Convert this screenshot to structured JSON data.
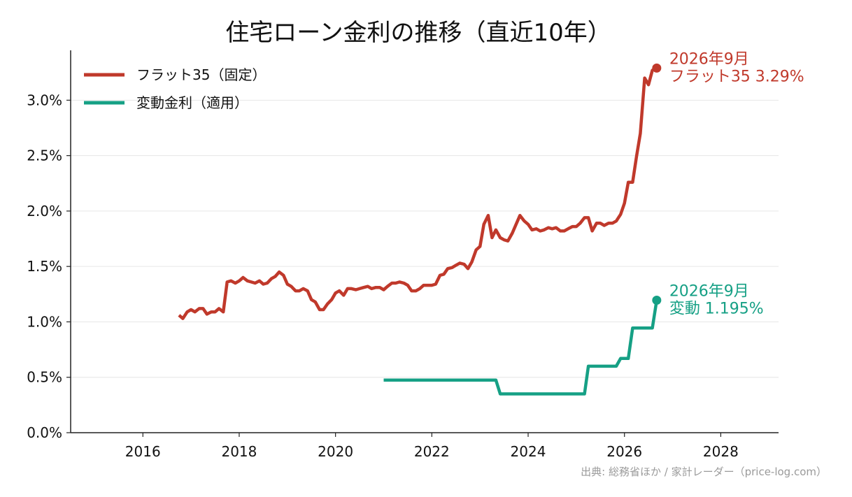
{
  "chart_data": {
    "type": "line",
    "title": "住宅ローン金利の推移（直近10年）",
    "xlabel": "",
    "ylabel": "",
    "xlim": [
      2014.5,
      2029.2
    ],
    "ylim": [
      0.0,
      3.45
    ],
    "x_ticks": [
      2016,
      2018,
      2020,
      2022,
      2024,
      2026,
      2028
    ],
    "x_tick_labels": [
      "2016",
      "2018",
      "2020",
      "2022",
      "2024",
      "2026",
      "2028"
    ],
    "y_ticks": [
      0.0,
      0.5,
      1.0,
      1.5,
      2.0,
      2.5,
      3.0
    ],
    "y_tick_labels": [
      "0.0%",
      "0.5%",
      "1.0%",
      "1.5%",
      "2.0%",
      "2.5%",
      "3.0%"
    ],
    "grid": "horizontal",
    "legend_position": "top-left",
    "series": [
      {
        "name": "フラット35（固定）",
        "color": "#c0392b",
        "points": [
          [
            2016.75,
            1.06
          ],
          [
            2016.83,
            1.03
          ],
          [
            2016.92,
            1.09
          ],
          [
            2017.0,
            1.11
          ],
          [
            2017.08,
            1.09
          ],
          [
            2017.17,
            1.12
          ],
          [
            2017.25,
            1.12
          ],
          [
            2017.33,
            1.07
          ],
          [
            2017.42,
            1.09
          ],
          [
            2017.5,
            1.09
          ],
          [
            2017.58,
            1.12
          ],
          [
            2017.67,
            1.09
          ],
          [
            2017.75,
            1.36
          ],
          [
            2017.83,
            1.37
          ],
          [
            2017.92,
            1.35
          ],
          [
            2018.0,
            1.37
          ],
          [
            2018.08,
            1.4
          ],
          [
            2018.17,
            1.37
          ],
          [
            2018.25,
            1.36
          ],
          [
            2018.33,
            1.35
          ],
          [
            2018.42,
            1.37
          ],
          [
            2018.5,
            1.34
          ],
          [
            2018.58,
            1.35
          ],
          [
            2018.67,
            1.39
          ],
          [
            2018.75,
            1.41
          ],
          [
            2018.83,
            1.45
          ],
          [
            2018.92,
            1.42
          ],
          [
            2019.0,
            1.34
          ],
          [
            2019.08,
            1.32
          ],
          [
            2019.17,
            1.28
          ],
          [
            2019.25,
            1.28
          ],
          [
            2019.33,
            1.3
          ],
          [
            2019.42,
            1.28
          ],
          [
            2019.5,
            1.2
          ],
          [
            2019.58,
            1.18
          ],
          [
            2019.67,
            1.11
          ],
          [
            2019.75,
            1.11
          ],
          [
            2019.83,
            1.16
          ],
          [
            2019.92,
            1.2
          ],
          [
            2020.0,
            1.26
          ],
          [
            2020.08,
            1.28
          ],
          [
            2020.17,
            1.24
          ],
          [
            2020.25,
            1.3
          ],
          [
            2020.33,
            1.3
          ],
          [
            2020.42,
            1.29
          ],
          [
            2020.5,
            1.3
          ],
          [
            2020.58,
            1.31
          ],
          [
            2020.67,
            1.32
          ],
          [
            2020.75,
            1.3
          ],
          [
            2020.83,
            1.31
          ],
          [
            2020.92,
            1.31
          ],
          [
            2021.0,
            1.29
          ],
          [
            2021.08,
            1.32
          ],
          [
            2021.17,
            1.35
          ],
          [
            2021.25,
            1.35
          ],
          [
            2021.33,
            1.36
          ],
          [
            2021.42,
            1.35
          ],
          [
            2021.5,
            1.33
          ],
          [
            2021.58,
            1.28
          ],
          [
            2021.67,
            1.28
          ],
          [
            2021.75,
            1.3
          ],
          [
            2021.83,
            1.33
          ],
          [
            2021.92,
            1.33
          ],
          [
            2022.0,
            1.33
          ],
          [
            2022.08,
            1.34
          ],
          [
            2022.17,
            1.42
          ],
          [
            2022.25,
            1.43
          ],
          [
            2022.33,
            1.48
          ],
          [
            2022.42,
            1.49
          ],
          [
            2022.5,
            1.51
          ],
          [
            2022.58,
            1.53
          ],
          [
            2022.67,
            1.52
          ],
          [
            2022.75,
            1.48
          ],
          [
            2022.83,
            1.54
          ],
          [
            2022.92,
            1.65
          ],
          [
            2023.0,
            1.68
          ],
          [
            2023.08,
            1.88
          ],
          [
            2023.17,
            1.96
          ],
          [
            2023.25,
            1.76
          ],
          [
            2023.33,
            1.83
          ],
          [
            2023.42,
            1.76
          ],
          [
            2023.5,
            1.74
          ],
          [
            2023.58,
            1.73
          ],
          [
            2023.67,
            1.8
          ],
          [
            2023.75,
            1.88
          ],
          [
            2023.83,
            1.96
          ],
          [
            2023.92,
            1.91
          ],
          [
            2024.0,
            1.88
          ],
          [
            2024.08,
            1.83
          ],
          [
            2024.17,
            1.84
          ],
          [
            2024.25,
            1.82
          ],
          [
            2024.33,
            1.83
          ],
          [
            2024.42,
            1.85
          ],
          [
            2024.5,
            1.84
          ],
          [
            2024.58,
            1.85
          ],
          [
            2024.67,
            1.82
          ],
          [
            2024.75,
            1.82
          ],
          [
            2024.83,
            1.84
          ],
          [
            2024.92,
            1.86
          ],
          [
            2025.0,
            1.86
          ],
          [
            2025.08,
            1.89
          ],
          [
            2025.17,
            1.94
          ],
          [
            2025.25,
            1.94
          ],
          [
            2025.33,
            1.82
          ],
          [
            2025.42,
            1.89
          ],
          [
            2025.5,
            1.89
          ],
          [
            2025.58,
            1.87
          ],
          [
            2025.67,
            1.89
          ],
          [
            2025.75,
            1.89
          ],
          [
            2025.83,
            1.91
          ],
          [
            2025.92,
            1.97
          ],
          [
            2026.0,
            2.07
          ],
          [
            2026.08,
            2.26
          ],
          [
            2026.17,
            2.26
          ],
          [
            2026.25,
            2.49
          ],
          [
            2026.33,
            2.7
          ],
          [
            2026.42,
            3.2
          ],
          [
            2026.5,
            3.14
          ],
          [
            2026.58,
            3.27
          ],
          [
            2026.67,
            3.29
          ]
        ],
        "end_label_lines": [
          "2026年9月",
          "フラット35 3.29%"
        ]
      },
      {
        "name": "変動金利（適用）",
        "color": "#16a085",
        "points": [
          [
            2021.0,
            0.475
          ],
          [
            2022.0,
            0.475
          ],
          [
            2023.33,
            0.475
          ],
          [
            2023.42,
            0.35
          ],
          [
            2024.0,
            0.35
          ],
          [
            2025.17,
            0.35
          ],
          [
            2025.25,
            0.6
          ],
          [
            2025.83,
            0.6
          ],
          [
            2025.92,
            0.67
          ],
          [
            2026.08,
            0.67
          ],
          [
            2026.17,
            0.945
          ],
          [
            2026.58,
            0.945
          ],
          [
            2026.67,
            1.195
          ]
        ],
        "end_label_lines": [
          "2026年9月",
          "変動 1.195%"
        ]
      }
    ],
    "source_note": "出典: 総務省ほか / 家計レーダー（price-log.com）"
  }
}
